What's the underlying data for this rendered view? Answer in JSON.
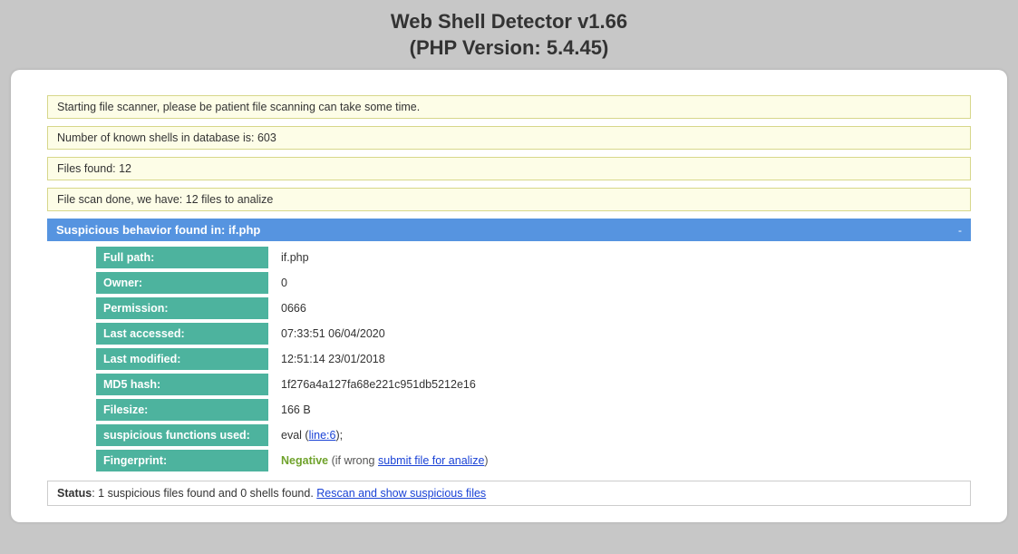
{
  "header": {
    "title_line1": "Web Shell Detector v1.66",
    "title_line2": "(PHP Version: 5.4.45)"
  },
  "notices": [
    "Starting file scanner, please be patient file scanning can take some time.",
    "Number of known shells in database is: 603",
    "Files found: 12",
    "File scan done, we have: 12 files to analize"
  ],
  "suspicious": {
    "header_text": "Suspicious behavior found in: if.php",
    "collapse_symbol": "-",
    "rows": {
      "full_path": {
        "label": "Full path:",
        "value": "if.php"
      },
      "owner": {
        "label": "Owner:",
        "value": "0"
      },
      "permission": {
        "label": "Permission:",
        "value": "0666"
      },
      "last_accessed": {
        "label": "Last accessed:",
        "value": "07:33:51 06/04/2020"
      },
      "last_modified": {
        "label": "Last modified:",
        "value": "12:51:14 23/01/2018"
      },
      "md5": {
        "label": "MD5 hash:",
        "value": "1f276a4a127fa68e221c951db5212e16"
      },
      "filesize": {
        "label": "Filesize:",
        "value": "166 B"
      },
      "functions": {
        "label": "suspicious functions used:",
        "prefix": "eval (",
        "link": "line:6",
        "suffix": ");"
      },
      "fingerprint": {
        "label": "Fingerprint:",
        "negative": "Negative",
        "mid": " (if wrong ",
        "link": "submit file for analize",
        "suffix": ")"
      }
    }
  },
  "status": {
    "label": "Status",
    "text": ": 1 suspicious files found and 0 shells found. ",
    "link": "Rescan and show suspicious files"
  },
  "colors": {
    "page_bg": "#c7c7c7",
    "card_bg": "#ffffff",
    "notice_bg": "#fdfde7",
    "notice_border": "#d7d78a",
    "section_header_bg": "#5694e0",
    "detail_label_bg": "#4db39e",
    "link_color": "#1a42d6",
    "negative_color": "#6fa22b"
  }
}
